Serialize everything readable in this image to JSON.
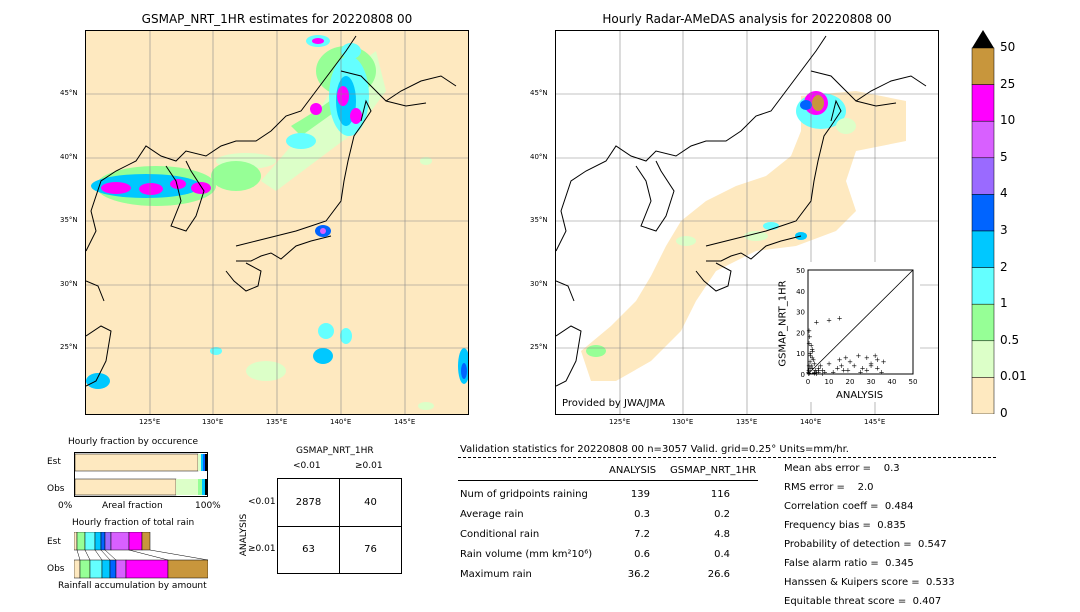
{
  "left_map": {
    "title": "GSMAP_NRT_1HR estimates for 20220808 00",
    "lat_labels": [
      "45°N",
      "40°N",
      "35°N",
      "30°N",
      "25°N"
    ],
    "lon_labels": [
      "125°E",
      "130°E",
      "135°E",
      "140°E",
      "145°E"
    ]
  },
  "right_map": {
    "title": "Hourly Radar-AMeDAS analysis for 20220808 00",
    "lat_labels": [
      "45°N",
      "40°N",
      "35°N",
      "30°N",
      "25°N"
    ],
    "lon_labels": [
      "125°E",
      "130°E",
      "135°E",
      "140°E",
      "145°E"
    ],
    "credit": "Provided by JWA/JMA"
  },
  "colorbar": {
    "labels": [
      "50",
      "25",
      "10",
      "5",
      "4",
      "3",
      "2",
      "1",
      "0.5",
      "0.01",
      "0"
    ],
    "colors": [
      "#c8963c",
      "#ff00ff",
      "#d860ff",
      "#9a6aff",
      "#0064ff",
      "#00c8ff",
      "#64ffff",
      "#96ff96",
      "#dcffc8",
      "#fee9c0"
    ]
  },
  "scatter_inset": {
    "type": "scatter",
    "xlabel": "ANALYSIS",
    "ylabel": "GSMAP_NRT_1HR",
    "xlim": [
      0,
      50
    ],
    "ylim": [
      0,
      50
    ],
    "ticks": [
      "0",
      "10",
      "20",
      "30",
      "40",
      "50"
    ]
  },
  "chart_data": {
    "type": "scatter",
    "xlabel": "ANALYSIS",
    "ylabel": "GSMAP_NRT_1HR",
    "xlim": [
      0,
      50
    ],
    "ylim": [
      0,
      50
    ],
    "x": [
      0.2,
      0.4,
      0.6,
      1,
      1,
      1.5,
      2,
      2,
      3,
      0.5,
      0.3,
      1.2,
      2.5,
      3.5,
      4,
      5,
      6,
      7,
      8,
      10,
      12,
      14,
      15,
      16,
      17,
      18,
      19,
      20,
      22,
      24,
      25,
      26,
      28,
      30,
      32,
      33,
      36,
      1,
      2,
      3,
      0.8,
      1.5,
      2.2,
      3,
      4,
      5,
      0.5,
      0.5,
      10,
      4,
      15,
      28,
      30,
      35,
      33,
      5,
      3,
      7
    ],
    "y": [
      1,
      2,
      0.5,
      3,
      6,
      4,
      8,
      12,
      5,
      15,
      0.2,
      9,
      7,
      2,
      1,
      3,
      4,
      2,
      1,
      5,
      1,
      3,
      7,
      4,
      2,
      8,
      2,
      6,
      4,
      9,
      1,
      3,
      8,
      5,
      9,
      7,
      6,
      10,
      3,
      1,
      18,
      14,
      11,
      0.5,
      0.3,
      2,
      4,
      21,
      26,
      25,
      27,
      2,
      4,
      1,
      3,
      1,
      0.5,
      0.2
    ]
  },
  "fraction_panels": {
    "occurrence_title": "Hourly fraction by occurence",
    "est_label": "Est",
    "obs_label": "Obs",
    "axis_left": "0%",
    "axis_mid": "Areal fraction",
    "axis_right": "100%",
    "total_rain_title": "Hourly fraction of total rain",
    "total_rain_footer": "Rainfall accumulation by amount",
    "occurrence_est": [
      0.96,
      0.01,
      0.01,
      0.01,
      0.005,
      0.005
    ],
    "occurrence_obs": [
      0.81,
      0.1,
      0.04,
      0.03,
      0.02
    ]
  },
  "contingency": {
    "title": "GSMAP_NRT_1HR",
    "col1": "<0.01",
    "col2": "≥0.01",
    "row_axis": "ANALYSIS",
    "row1": "<0.01",
    "row2": "≥0.01",
    "cells": [
      "2878",
      "40",
      "63",
      "76"
    ]
  },
  "validation": {
    "header": "Validation statistics for 20220808 00  n=3057 Valid. grid=0.25° Units=mm/hr.",
    "col_analysis": "ANALYSIS",
    "col_gsmap": "GSMAP_NRT_1HR",
    "rows": [
      {
        "label": "Num of gridpoints raining",
        "a": "139",
        "g": "116"
      },
      {
        "label": "Average rain",
        "a": "0.3",
        "g": "0.2"
      },
      {
        "label": "Conditional rain",
        "a": "7.2",
        "g": "4.8"
      },
      {
        "label": "Rain volume (mm km²10⁶)",
        "a": "0.6",
        "g": "0.4"
      },
      {
        "label": "Maximum rain",
        "a": "36.2",
        "g": "26.6"
      }
    ],
    "scores": [
      "Mean abs error =    0.3",
      "RMS error =    2.0",
      "Correlation coeff =  0.484",
      "Frequency bias =  0.835",
      "Probability of detection =  0.547",
      "False alarm ratio =  0.345",
      "Hanssen & Kuipers score =  0.533",
      "Equitable threat score =  0.407"
    ]
  }
}
